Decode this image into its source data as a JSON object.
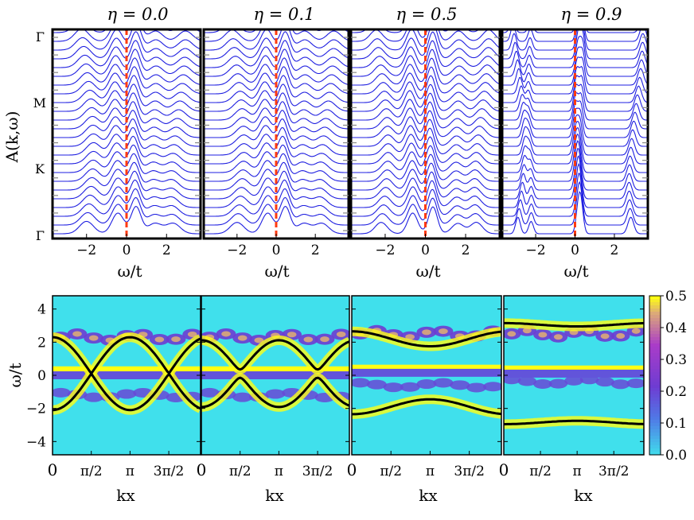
{
  "chart_data": {
    "type": "figure",
    "colors": {
      "trace": "#1f1fe0",
      "fermi": "#ff3a10",
      "band": "#000000"
    },
    "top_panels": {
      "type": "line",
      "ylabel": "A(k,ω)",
      "k_labels": [
        "Γ",
        "M",
        "K",
        "Γ"
      ],
      "xlabel": "ω/t",
      "x_ticks": [
        "−2",
        "0",
        "2"
      ],
      "xlim": [
        -3.7,
        3.7
      ],
      "n_traces": 24,
      "panels": [
        {
          "title": "η = 0.0",
          "peaks": [
            -2.0,
            -0.5,
            0.4,
            1.4,
            2.6
          ],
          "widths": [
            0.35,
            0.3,
            0.25,
            0.35,
            0.35
          ],
          "amps": [
            0.6,
            1.0,
            1.3,
            0.5,
            0.5
          ]
        },
        {
          "title": "η = 0.1",
          "peaks": [
            -2.0,
            -0.5,
            0.4,
            1.4,
            2.6
          ],
          "widths": [
            0.35,
            0.3,
            0.25,
            0.35,
            0.35
          ],
          "amps": [
            0.55,
            1.0,
            1.3,
            0.5,
            0.5
          ]
        },
        {
          "title": "η = 0.5",
          "peaks": [
            -2.2,
            -0.7,
            0.3,
            1.6,
            2.8
          ],
          "widths": [
            0.3,
            0.25,
            0.22,
            0.3,
            0.3
          ],
          "amps": [
            0.55,
            1.0,
            1.3,
            0.5,
            0.55
          ]
        },
        {
          "title": "η = 0.9",
          "peaks": [
            -2.9,
            -2.3,
            0.1,
            0.3,
            3.1
          ],
          "widths": [
            0.12,
            0.12,
            0.12,
            0.12,
            0.15
          ],
          "amps": [
            0.8,
            0.6,
            1.2,
            1.2,
            0.8
          ]
        }
      ]
    },
    "bottom_panels": {
      "type": "heatmap",
      "ylabel": "ω/t",
      "xlabel": "kx",
      "x_ticks": [
        "0",
        "π/2",
        "π",
        "3π/2"
      ],
      "y_ticks": [
        "4",
        "2",
        "0",
        "−2",
        "−4"
      ],
      "ylim": [
        -4.8,
        4.8
      ],
      "xlim": [
        0,
        6.0
      ],
      "colorbar": {
        "ticks": [
          "0.5",
          "0.4",
          "0.3",
          "0.2",
          "0.1",
          "0.0"
        ],
        "range": [
          0.0,
          0.5
        ]
      },
      "panels": [
        {
          "bands": [
            {
              "center": 0.1,
              "amp": 2.2,
              "gap": 0.0,
              "sign": 1
            },
            {
              "center": 0.1,
              "amp": 2.2,
              "gap": 0.0,
              "sign": -1
            }
          ],
          "flat": [
            0.3,
            0.0
          ],
          "blobs_upper": 2.3,
          "blobs_lower": -1.2
        },
        {
          "bands": [
            {
              "center": 0.1,
              "amp": 2.0,
              "gap": 0.25,
              "sign": 1
            },
            {
              "center": 0.1,
              "amp": 2.0,
              "gap": 0.25,
              "sign": -1
            }
          ],
          "flat": [
            0.3,
            0.0
          ],
          "blobs_upper": 2.3,
          "blobs_lower": -1.2
        },
        {
          "bands": [
            {
              "center": 2.2,
              "amp": 0.45,
              "gap": 0.0,
              "sign": 1
            },
            {
              "center": -1.9,
              "amp": 0.45,
              "gap": 0.0,
              "sign": -1
            }
          ],
          "flat": [
            0.4,
            0.15
          ],
          "blobs_upper": 2.5,
          "blobs_lower": -0.6
        },
        {
          "bands": [
            {
              "center": 3.05,
              "amp": 0.1,
              "gap": 0.0,
              "sign": 1
            },
            {
              "center": -2.85,
              "amp": 0.1,
              "gap": 0.0,
              "sign": -1
            }
          ],
          "flat": [
            0.35,
            0.1
          ],
          "blobs_upper": 2.5,
          "blobs_lower": -0.4
        }
      ]
    }
  }
}
